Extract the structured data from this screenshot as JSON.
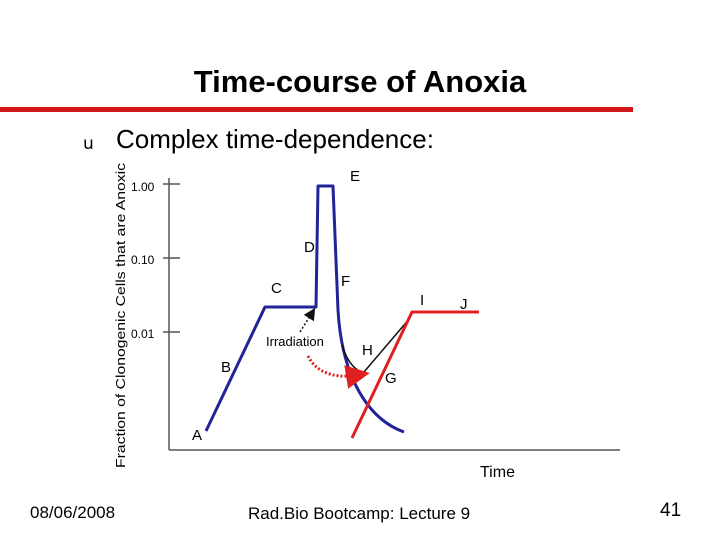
{
  "slide": {
    "title": "Time-course of Anoxia",
    "bullet_symbol": "u",
    "bullet_text": "Complex time-dependence:"
  },
  "diagram": {
    "y_axis_label": "Fraction of Clonogenic Cells that are Anoxic",
    "x_axis_label": "Time",
    "y_ticks": [
      "1.00",
      "0.10",
      "0.01"
    ],
    "point_labels": [
      "A",
      "B",
      "C",
      "D",
      "E",
      "F",
      "G",
      "H",
      "I",
      "J"
    ],
    "irradiation_label": "Irradiation",
    "colors": {
      "blue": "#222299",
      "red": "#e02020",
      "black": "#111111"
    }
  },
  "footer": {
    "date": "08/06/2008",
    "center": "Rad.Bio Bootcamp: Lecture 9",
    "page": "41"
  }
}
